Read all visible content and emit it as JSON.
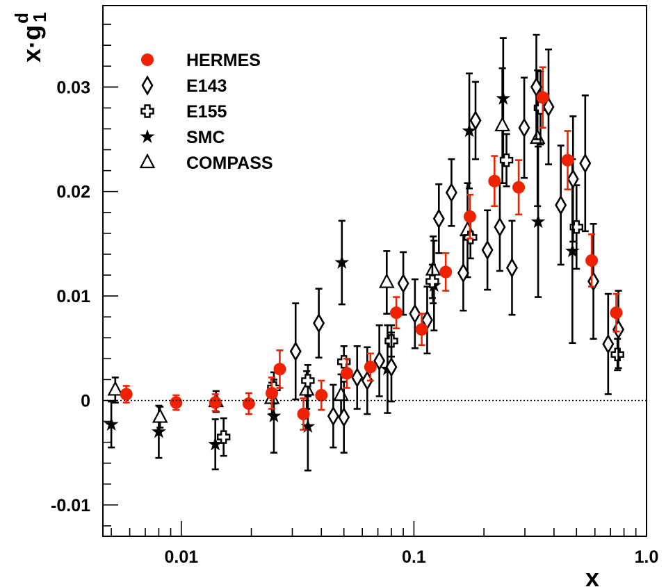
{
  "chart_data": {
    "type": "scatter",
    "title": "",
    "xlabel": "x",
    "ylabel": "x·g",
    "ylabel_sup": "d",
    "ylabel_sub": "1",
    "xscale": "log",
    "xlim": [
      0.0046,
      1.0
    ],
    "ylim": [
      -0.013,
      0.0378
    ],
    "grid": false,
    "legend_position": "top-left",
    "zero_line": "dotted",
    "x_ticks": [
      {
        "value": 0.01,
        "label": "0.01"
      },
      {
        "value": 0.1,
        "label": "0.1"
      },
      {
        "value": 1.0,
        "label": "1.0"
      }
    ],
    "y_ticks": [
      {
        "value": -0.01,
        "label": "-0.01"
      },
      {
        "value": 0,
        "label": "0"
      },
      {
        "value": 0.01,
        "label": "0.01"
      },
      {
        "value": 0.02,
        "label": "0.02"
      },
      {
        "value": 0.03,
        "label": "0.03"
      }
    ],
    "series": [
      {
        "name": "HERMES",
        "marker": "circle",
        "color": "#ee2200",
        "points": [
          {
            "x": 0.0058,
            "y": 0.0006,
            "err": 0.0008
          },
          {
            "x": 0.0095,
            "y": -0.0002,
            "err": 0.0007
          },
          {
            "x": 0.014,
            "y": -0.0002,
            "err": 0.0008
          },
          {
            "x": 0.0195,
            "y": -0.0003,
            "err": 0.001
          },
          {
            "x": 0.0245,
            "y": 0.0007,
            "err": 0.0015
          },
          {
            "x": 0.0265,
            "y": 0.003,
            "err": 0.0018
          },
          {
            "x": 0.0335,
            "y": -0.0013,
            "err": 0.0015
          },
          {
            "x": 0.04,
            "y": 0.0005,
            "err": 0.0014
          },
          {
            "x": 0.0515,
            "y": 0.0026,
            "err": 0.0014
          },
          {
            "x": 0.065,
            "y": 0.0032,
            "err": 0.0013
          },
          {
            "x": 0.084,
            "y": 0.0084,
            "err": 0.0015
          },
          {
            "x": 0.108,
            "y": 0.0068,
            "err": 0.0015
          },
          {
            "x": 0.137,
            "y": 0.0123,
            "err": 0.0018
          },
          {
            "x": 0.174,
            "y": 0.0176,
            "err": 0.0021
          },
          {
            "x": 0.222,
            "y": 0.021,
            "err": 0.0024
          },
          {
            "x": 0.282,
            "y": 0.0204,
            "err": 0.0026
          },
          {
            "x": 0.358,
            "y": 0.029,
            "err": 0.0029
          },
          {
            "x": 0.458,
            "y": 0.023,
            "err": 0.0028
          },
          {
            "x": 0.581,
            "y": 0.0134,
            "err": 0.0025
          },
          {
            "x": 0.741,
            "y": 0.0084,
            "err": 0.0018
          }
        ]
      },
      {
        "name": "E143",
        "marker": "diamond",
        "color": "#000000",
        "points": [
          {
            "x": 0.031,
            "y": 0.0047,
            "err": 0.0046
          },
          {
            "x": 0.039,
            "y": 0.0074,
            "err": 0.0033
          },
          {
            "x": 0.045,
            "y": -0.0015,
            "err": 0.003
          },
          {
            "x": 0.05,
            "y": -0.0016,
            "err": 0.0034
          },
          {
            "x": 0.057,
            "y": 0.0022,
            "err": 0.003
          },
          {
            "x": 0.063,
            "y": 0.0019,
            "err": 0.0032
          },
          {
            "x": 0.071,
            "y": 0.0038,
            "err": 0.0034
          },
          {
            "x": 0.08,
            "y": 0.0032,
            "err": 0.0033
          },
          {
            "x": 0.09,
            "y": 0.0112,
            "err": 0.003
          },
          {
            "x": 0.101,
            "y": 0.0083,
            "err": 0.0033
          },
          {
            "x": 0.114,
            "y": 0.0077,
            "err": 0.0032
          },
          {
            "x": 0.128,
            "y": 0.0174,
            "err": 0.0033
          },
          {
            "x": 0.145,
            "y": 0.0199,
            "err": 0.0032
          },
          {
            "x": 0.163,
            "y": 0.0122,
            "err": 0.0036
          },
          {
            "x": 0.184,
            "y": 0.0268,
            "err": 0.0037
          },
          {
            "x": 0.207,
            "y": 0.0144,
            "err": 0.0038
          },
          {
            "x": 0.234,
            "y": 0.0166,
            "err": 0.0042
          },
          {
            "x": 0.264,
            "y": 0.0127,
            "err": 0.0045
          },
          {
            "x": 0.298,
            "y": 0.0261,
            "err": 0.0048
          },
          {
            "x": 0.336,
            "y": 0.03,
            "err": 0.005
          },
          {
            "x": 0.379,
            "y": 0.0281,
            "err": 0.0055
          },
          {
            "x": 0.428,
            "y": 0.0187,
            "err": 0.0057
          },
          {
            "x": 0.483,
            "y": 0.0212,
            "err": 0.006
          },
          {
            "x": 0.545,
            "y": 0.0227,
            "err": 0.0065
          },
          {
            "x": 0.591,
            "y": 0.0114,
            "err": 0.0055
          },
          {
            "x": 0.684,
            "y": 0.0054,
            "err": 0.0048
          },
          {
            "x": 0.757,
            "y": 0.0068,
            "err": 0.0037
          }
        ]
      },
      {
        "name": "E155",
        "marker": "cross",
        "color": "#000000",
        "points": [
          {
            "x": 0.0152,
            "y": -0.0035,
            "err": 0.0018
          },
          {
            "x": 0.025,
            "y": 0.0012,
            "err": 0.0015
          },
          {
            "x": 0.035,
            "y": 0.0019,
            "err": 0.0015
          },
          {
            "x": 0.05,
            "y": 0.0037,
            "err": 0.0015
          },
          {
            "x": 0.08,
            "y": 0.0057,
            "err": 0.0015
          },
          {
            "x": 0.12,
            "y": 0.0114,
            "err": 0.0016
          },
          {
            "x": 0.175,
            "y": 0.0156,
            "err": 0.002
          },
          {
            "x": 0.25,
            "y": 0.023,
            "err": 0.0025
          },
          {
            "x": 0.35,
            "y": 0.028,
            "err": 0.0035
          },
          {
            "x": 0.5,
            "y": 0.0166,
            "err": 0.004
          },
          {
            "x": 0.75,
            "y": 0.0044,
            "err": 0.0015
          }
        ]
      },
      {
        "name": "SMC",
        "marker": "star",
        "color": "#000000",
        "points": [
          {
            "x": 0.005,
            "y": -0.0023,
            "err": 0.0022
          },
          {
            "x": 0.008,
            "y": -0.003,
            "err": 0.0025
          },
          {
            "x": 0.014,
            "y": -0.0042,
            "err": 0.0024
          },
          {
            "x": 0.025,
            "y": -0.0015,
            "err": 0.0035
          },
          {
            "x": 0.035,
            "y": -0.0025,
            "err": 0.0042
          },
          {
            "x": 0.049,
            "y": 0.0132,
            "err": 0.004
          },
          {
            "x": 0.077,
            "y": 0.003,
            "err": 0.0042
          },
          {
            "x": 0.122,
            "y": 0.011,
            "err": 0.0043
          },
          {
            "x": 0.173,
            "y": 0.0258,
            "err": 0.0055
          },
          {
            "x": 0.242,
            "y": 0.0289,
            "err": 0.0058
          },
          {
            "x": 0.342,
            "y": 0.0171,
            "err": 0.0072
          },
          {
            "x": 0.48,
            "y": 0.0143,
            "err": 0.0088
          }
        ]
      },
      {
        "name": "COMPASS",
        "marker": "triangle",
        "color": "#000000",
        "points": [
          {
            "x": 0.0052,
            "y": 0.001,
            "err": 0.0012
          },
          {
            "x": 0.0081,
            "y": -0.0016,
            "err": 0.001
          },
          {
            "x": 0.0141,
            "y": -0.0001,
            "err": 0.001
          },
          {
            "x": 0.0245,
            "y": 0.0002,
            "err": 0.0015
          },
          {
            "x": 0.0346,
            "y": 0.001,
            "err": 0.0018
          },
          {
            "x": 0.0486,
            "y": 0.0005,
            "err": 0.002
          },
          {
            "x": 0.0764,
            "y": 0.0113,
            "err": 0.003
          },
          {
            "x": 0.121,
            "y": 0.0125,
            "err": 0.0032
          },
          {
            "x": 0.17,
            "y": 0.0163,
            "err": 0.0045
          },
          {
            "x": 0.24,
            "y": 0.0263,
            "err": 0.0055
          },
          {
            "x": 0.34,
            "y": 0.0251,
            "err": 0.0065
          }
        ]
      }
    ]
  }
}
